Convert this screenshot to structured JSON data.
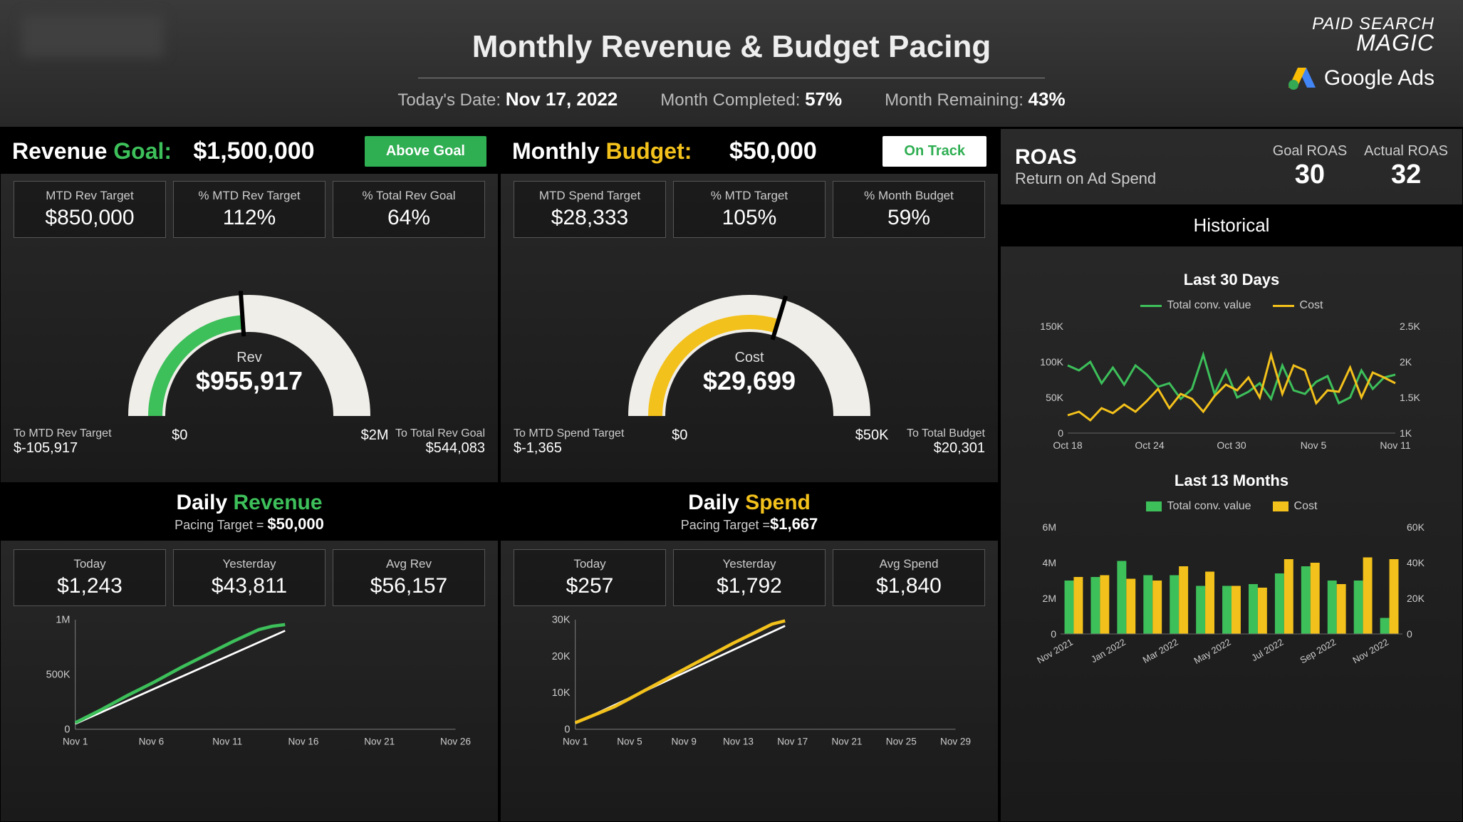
{
  "header": {
    "title": "Monthly Revenue & Budget Pacing",
    "date_label": "Today's Date:",
    "date_value": "Nov 17, 2022",
    "completed_label": "Month Completed:",
    "completed_value": "57%",
    "remaining_label": "Month Remaining:",
    "remaining_value": "43%",
    "logo1_top": "PAID SEARCH",
    "logo1_bottom": "MAGIC",
    "logo2": "Google Ads"
  },
  "revenue": {
    "goal_label_1": "Revenue ",
    "goal_label_2": "Goal:",
    "goal_value": "$1,500,000",
    "badge": "Above Goal",
    "badge_color": "#2fae52",
    "kpis": [
      {
        "label": "MTD Rev Target",
        "value": "$850,000"
      },
      {
        "label": "% MTD Rev Target",
        "value": "112%"
      },
      {
        "label": "% Total Rev Goal",
        "value": "64%"
      }
    ],
    "gauge": {
      "center_label": "Rev",
      "center_value": "$955,917",
      "min_label": "$0",
      "max_label": "$2M",
      "left_label": "To MTD Rev Target",
      "left_value": "$-105,917",
      "right_label": "To Total Rev Goal",
      "right_value": "$544,083",
      "track_color": "#f0eee9",
      "fill_color": "#3dbf5a",
      "fill_pct": 0.478,
      "max": 2000000,
      "value": 955917
    },
    "daily": {
      "title_1": "Daily ",
      "title_2": "Revenue",
      "subtitle_label": "Pacing Target = ",
      "subtitle_value": "$50,000",
      "kpis": [
        {
          "label": "Today",
          "value": "$1,243"
        },
        {
          "label": "Yesterday",
          "value": "$43,811"
        },
        {
          "label": "Avg Rev",
          "value": "$56,157"
        }
      ],
      "chart": {
        "y_ticks": [
          "0",
          "500K",
          "1M"
        ],
        "y_max": 1000000,
        "x_labels": [
          "Nov 1",
          "Nov 6",
          "Nov 11",
          "Nov 16",
          "Nov 21",
          "Nov 26"
        ],
        "target_line": [
          [
            0,
            50000
          ],
          [
            16,
            900000
          ]
        ],
        "actual_line": [
          [
            0,
            60000
          ],
          [
            2,
            180000
          ],
          [
            4,
            310000
          ],
          [
            6,
            430000
          ],
          [
            8,
            560000
          ],
          [
            10,
            680000
          ],
          [
            12,
            800000
          ],
          [
            14,
            910000
          ],
          [
            15,
            940000
          ],
          [
            16,
            955917
          ]
        ],
        "target_color": "#ffffff",
        "actual_color": "#3dbf5a"
      }
    }
  },
  "spend": {
    "goal_label_1": "Monthly ",
    "goal_label_2": "Budget:",
    "goal_value": "$50,000",
    "badge": "On Track",
    "kpis": [
      {
        "label": "MTD Spend Target",
        "value": "$28,333"
      },
      {
        "label": "% MTD Target",
        "value": "105%"
      },
      {
        "label": "% Month Budget",
        "value": "59%"
      }
    ],
    "gauge": {
      "center_label": "Cost",
      "center_value": "$29,699",
      "min_label": "$0",
      "max_label": "$50K",
      "left_label": "To MTD Spend Target",
      "left_value": "$-1,365",
      "right_label": "To Total Budget",
      "right_value": "$20,301",
      "track_color": "#f0eee9",
      "fill_color": "#f3c11b",
      "fill_pct": 0.594,
      "max": 50000,
      "value": 29699
    },
    "daily": {
      "title_1": "Daily ",
      "title_2": "Spend",
      "subtitle_label": "Pacing Target =",
      "subtitle_value": "$1,667",
      "kpis": [
        {
          "label": "Today",
          "value": "$257"
        },
        {
          "label": "Yesterday",
          "value": "$1,792"
        },
        {
          "label": "Avg Spend",
          "value": "$1,840"
        }
      ],
      "chart": {
        "y_ticks": [
          "0",
          "10K",
          "20K",
          "30K"
        ],
        "y_max": 30000,
        "x_labels": [
          "Nov 1",
          "Nov 5",
          "Nov 9",
          "Nov 13",
          "Nov 17",
          "Nov 21",
          "Nov 25",
          "Nov 29"
        ],
        "target_line": [
          [
            0,
            1667
          ],
          [
            16,
            28333
          ]
        ],
        "actual_line": [
          [
            0,
            1800
          ],
          [
            3,
            6200
          ],
          [
            6,
            12000
          ],
          [
            9,
            17800
          ],
          [
            12,
            23500
          ],
          [
            14,
            27000
          ],
          [
            15,
            28800
          ],
          [
            16,
            29699
          ]
        ],
        "target_color": "#ffffff",
        "actual_color": "#f3c11b"
      }
    }
  },
  "roas": {
    "title": "ROAS",
    "subtitle": "Return on Ad Spend",
    "goal_label": "Goal ROAS",
    "goal_value": "30",
    "actual_label": "Actual ROAS",
    "actual_value": "32",
    "historical_title": "Historical",
    "chart30": {
      "title": "Last 30 Days",
      "legend": [
        {
          "label": "Total conv. value",
          "color": "#3dbf5a"
        },
        {
          "label": "Cost",
          "color": "#f3c11b"
        }
      ],
      "y_left_ticks": [
        "0",
        "50K",
        "100K",
        "150K"
      ],
      "y_left_max": 150000,
      "y_right_ticks": [
        "1K",
        "1.5K",
        "2K",
        "2.5K"
      ],
      "y_right_min": 1000,
      "y_right_max": 2500,
      "x_labels": [
        "Oct 18",
        "Oct 24",
        "Oct 30",
        "Nov 5",
        "Nov 11"
      ],
      "series1": [
        95,
        88,
        100,
        70,
        92,
        68,
        95,
        82,
        65,
        70,
        48,
        62,
        110,
        55,
        88,
        50,
        58,
        70,
        48,
        95,
        60,
        55,
        72,
        80,
        42,
        50,
        88,
        62,
        78,
        82
      ],
      "series2": [
        1.25,
        1.3,
        1.18,
        1.35,
        1.28,
        1.4,
        1.3,
        1.45,
        1.62,
        1.35,
        1.55,
        1.48,
        1.3,
        1.52,
        1.68,
        1.6,
        1.78,
        1.5,
        2.1,
        1.55,
        1.95,
        1.88,
        1.42,
        1.6,
        1.58,
        1.92,
        1.5,
        1.85,
        1.78,
        1.7
      ]
    },
    "chart13": {
      "title": "Last 13 Months",
      "legend": [
        {
          "label": "Total conv. value",
          "color": "#3dbf5a"
        },
        {
          "label": "Cost",
          "color": "#f3c11b"
        }
      ],
      "y_left_ticks": [
        "0",
        "2M",
        "4M",
        "6M"
      ],
      "y_left_max": 6000000,
      "y_right_ticks": [
        "0",
        "20K",
        "40K",
        "60K"
      ],
      "y_right_max": 60000,
      "x_labels": [
        "Nov 2021",
        "Jan 2022",
        "Mar 2022",
        "May 2022",
        "Jul 2022",
        "Sep 2022",
        "Nov 2022"
      ],
      "bars1": [
        3.0,
        3.2,
        4.1,
        3.3,
        3.3,
        2.7,
        2.7,
        2.8,
        3.4,
        3.8,
        3.0,
        3.0,
        0.9
      ],
      "bars2": [
        32,
        33,
        31,
        30,
        38,
        35,
        27,
        26,
        42,
        40,
        28,
        43,
        42
      ]
    }
  },
  "colors": {
    "green": "#3dbf5a",
    "yellow": "#f3c11b",
    "track": "#f0eee9",
    "bg_panel": "#222222"
  }
}
